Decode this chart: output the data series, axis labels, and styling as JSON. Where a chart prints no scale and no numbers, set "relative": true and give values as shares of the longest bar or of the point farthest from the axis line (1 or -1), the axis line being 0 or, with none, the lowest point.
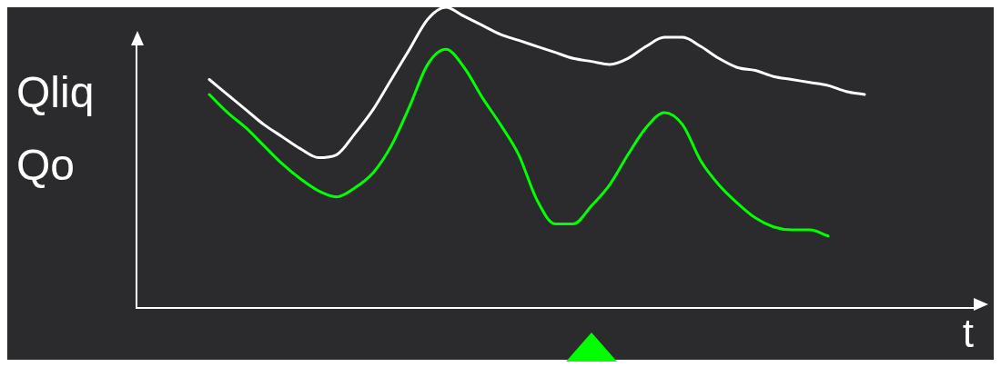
{
  "chart_data": {
    "type": "line",
    "relative": true,
    "xlabel": "t",
    "annotations": [
      "Qliq",
      "Qo"
    ],
    "legend": false,
    "marker": "none",
    "line_style": "solid",
    "categories": [
      null,
      null,
      null,
      null,
      null,
      null,
      null,
      null,
      null,
      null,
      null,
      null,
      null,
      null,
      null,
      null,
      null,
      null,
      null,
      null,
      null,
      null,
      null,
      null,
      null,
      null,
      null,
      null,
      null,
      null,
      null,
      null,
      null,
      null,
      null,
      null,
      null,
      null,
      null,
      null,
      null,
      null,
      null,
      null,
      null,
      null,
      null
    ],
    "series": [
      {
        "color": "#ffffff",
        "values": [
          null,
          null,
          null,
          null,
          0.76,
          0.71,
          0.66,
          0.61,
          0.57,
          0.53,
          0.5,
          0.51,
          0.58,
          0.66,
          0.76,
          0.86,
          0.96,
          1,
          0.97,
          0.94,
          0.91,
          0.89,
          0.87,
          0.85,
          0.83,
          0.82,
          0.81,
          0.83,
          0.87,
          0.9,
          0.9,
          0.87,
          0.83,
          0.8,
          0.79,
          0.77,
          0.76,
          0.75,
          0.74,
          0.72,
          0.71,
          null,
          null,
          null,
          null,
          null,
          null
        ]
      },
      {
        "color": "#00ff00",
        "values": [
          null,
          null,
          null,
          null,
          0.71,
          0.65,
          0.6,
          0.54,
          0.48,
          0.43,
          0.39,
          0.37,
          0.4,
          0.45,
          0.54,
          0.67,
          0.81,
          0.86,
          0.8,
          0.7,
          0.61,
          0.51,
          0.36,
          0.28,
          0.28,
          0.34,
          0.41,
          0.51,
          0.6,
          0.65,
          0.61,
          0.49,
          0.41,
          0.35,
          0.3,
          0.27,
          0.26,
          0.26,
          0.24,
          null,
          null,
          null,
          null,
          null,
          null,
          null,
          null
        ]
      }
    ]
  }
}
